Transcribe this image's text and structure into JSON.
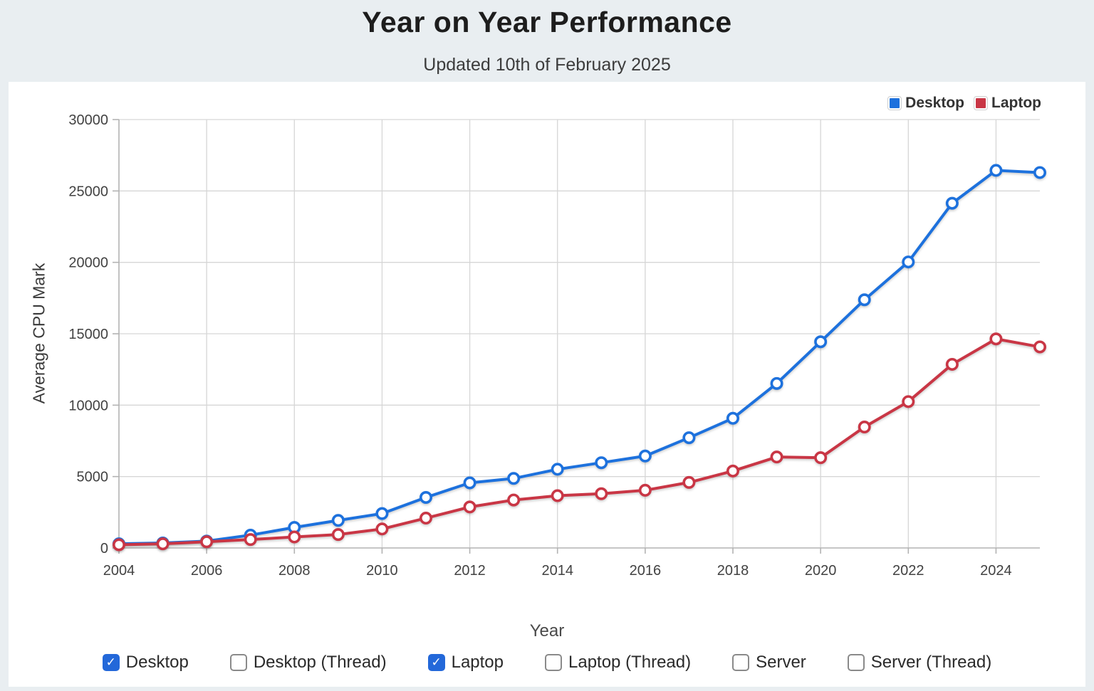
{
  "page": {
    "title": "Year on Year Performance",
    "subtitle": "Updated 10th of February 2025"
  },
  "legend": {
    "position": "top-right",
    "items": [
      {
        "label": "Desktop",
        "color": "#1d71dd"
      },
      {
        "label": "Laptop",
        "color": "#c93645"
      }
    ]
  },
  "chart_data": {
    "type": "line",
    "title": "Year on Year Performance",
    "xlabel": "Year",
    "ylabel": "Average CPU Mark",
    "xlim": [
      2004,
      2025
    ],
    "ylim": [
      0,
      30000
    ],
    "x_ticks": [
      2004,
      2006,
      2008,
      2010,
      2012,
      2014,
      2016,
      2018,
      2020,
      2022,
      2024
    ],
    "y_ticks": [
      0,
      5000,
      10000,
      15000,
      20000,
      25000,
      30000
    ],
    "grid": true,
    "legend_position": "top-right",
    "marker": "open-circle",
    "x": [
      2004,
      2005,
      2006,
      2007,
      2008,
      2009,
      2010,
      2011,
      2012,
      2013,
      2014,
      2015,
      2016,
      2017,
      2018,
      2019,
      2020,
      2021,
      2022,
      2023,
      2024,
      2025
    ],
    "series": [
      {
        "name": "Desktop",
        "color": "#1d71dd",
        "values": [
          290,
          350,
          480,
          900,
          1440,
          1930,
          2410,
          3540,
          4560,
          4870,
          5510,
          5970,
          6440,
          7720,
          9080,
          11520,
          14440,
          17380,
          20030,
          24140,
          26440,
          26290
        ]
      },
      {
        "name": "Laptop",
        "color": "#c93645",
        "values": [
          225,
          290,
          435,
          590,
          770,
          940,
          1330,
          2090,
          2870,
          3360,
          3660,
          3800,
          4040,
          4590,
          5390,
          6370,
          6320,
          8470,
          10250,
          12860,
          14640,
          14080
        ]
      }
    ]
  },
  "controls": {
    "checkboxes": [
      {
        "label": "Desktop",
        "checked": true
      },
      {
        "label": "Desktop (Thread)",
        "checked": false
      },
      {
        "label": "Laptop",
        "checked": true
      },
      {
        "label": "Laptop (Thread)",
        "checked": false
      },
      {
        "label": "Server",
        "checked": false
      },
      {
        "label": "Server (Thread)",
        "checked": false
      }
    ],
    "checkbox_checked_color": "#2368d9",
    "checkmark": "✓"
  },
  "colors": {
    "page_background": "#e9eef1",
    "panel_background": "#ffffff",
    "gridline": "#d6d6d6",
    "axis_line": "#b3b3b3",
    "tick_text": "#424242"
  }
}
